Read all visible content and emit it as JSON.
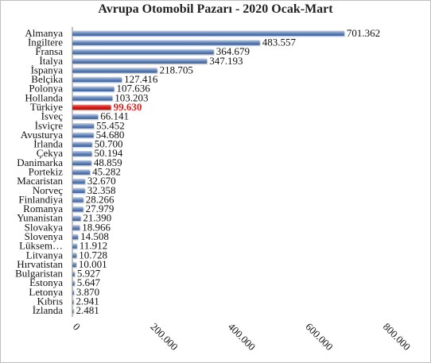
{
  "chart_data": {
    "type": "bar",
    "orientation": "horizontal",
    "title": "Avrupa Otomobil Pazarı - 2020 Ocak-Mart",
    "xlim": [
      0,
      800000
    ],
    "xticks": [
      0,
      200000,
      400000,
      600000,
      800000
    ],
    "xtick_labels": [
      "0",
      "200.000",
      "400.000",
      "600.000",
      "800.000"
    ],
    "grid": false,
    "highlight_category": "Türkiye",
    "colors": {
      "bar": "#6d8fc4",
      "highlight": "#e0201c",
      "highlight_label": "#e0201c"
    },
    "categories": [
      "Almanya",
      "İngiltere",
      "Fransa",
      "İtalya",
      "İspanya",
      "Belçika",
      "Polonya",
      "Hollanda",
      "Türkiye",
      "İsveç",
      "İsviçre",
      "Avusturya",
      "İrlanda",
      "Çekya",
      "Danimarka",
      "Portekiz",
      "Macaristan",
      "Norveç",
      "Finlandiya",
      "Romanya",
      "Yunanistan",
      "Slovakya",
      "Slovenya",
      "Lüksem…",
      "Litvanya",
      "Hırvatistan",
      "Bulgaristan",
      "Estonya",
      "Letonya",
      "Kıbrıs",
      "İzlanda"
    ],
    "values": [
      701362,
      483557,
      364679,
      347193,
      218705,
      127416,
      107636,
      103203,
      99630,
      66141,
      55452,
      54680,
      50700,
      50194,
      48859,
      45282,
      32670,
      32358,
      28266,
      27979,
      21390,
      18966,
      14508,
      11912,
      10728,
      10001,
      5927,
      5647,
      3870,
      2941,
      2481
    ],
    "value_labels": [
      "701.362",
      "483.557",
      "364.679",
      "347.193",
      "218.705",
      "127.416",
      "107.636",
      "103.203",
      "99.630",
      "66.141",
      "55.452",
      "54.680",
      "50.700",
      "50.194",
      "48.859",
      "45.282",
      "32.670",
      "32.358",
      "28.266",
      "27.979",
      "21.390",
      "18.966",
      "14.508",
      "11.912",
      "10.728",
      "10.001",
      "5.927",
      "5.647",
      "3.870",
      "2.941",
      "2.481"
    ]
  }
}
